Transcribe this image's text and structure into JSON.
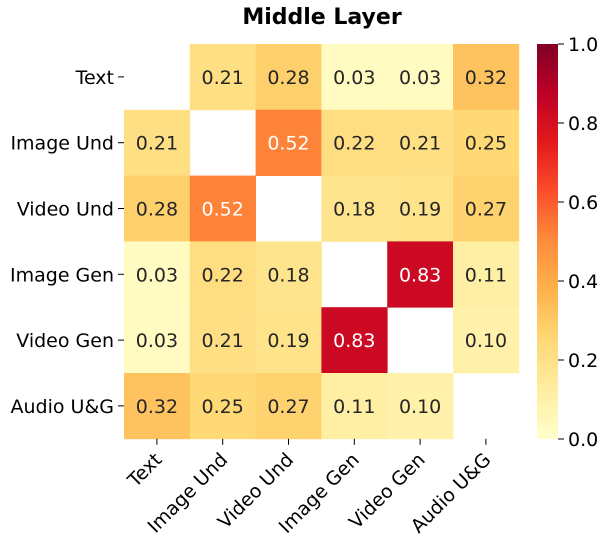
{
  "chart_data": {
    "type": "heatmap",
    "title": "Middle Layer",
    "rows": [
      "Text",
      "Image Und",
      "Video Und",
      "Image Gen",
      "Video Gen",
      "Audio U&G"
    ],
    "columns": [
      "Text",
      "Image Und",
      "Video Und",
      "Image Gen",
      "Video Gen",
      "Audio U&G"
    ],
    "values": [
      [
        null,
        0.21,
        0.28,
        0.03,
        0.03,
        0.32
      ],
      [
        0.21,
        null,
        0.52,
        0.22,
        0.21,
        0.25
      ],
      [
        0.28,
        0.52,
        null,
        0.18,
        0.19,
        0.27
      ],
      [
        0.03,
        0.22,
        0.18,
        null,
        0.83,
        0.11
      ],
      [
        0.03,
        0.21,
        0.19,
        0.83,
        null,
        0.1
      ],
      [
        0.32,
        0.25,
        0.27,
        0.11,
        0.1,
        null
      ]
    ],
    "value_labels": [
      [
        "",
        "0.21",
        "0.28",
        "0.03",
        "0.03",
        "0.32"
      ],
      [
        "0.21",
        "",
        "0.52",
        "0.22",
        "0.21",
        "0.25"
      ],
      [
        "0.28",
        "0.52",
        "",
        "0.18",
        "0.19",
        "0.27"
      ],
      [
        "0.03",
        "0.22",
        "0.18",
        "",
        "0.83",
        "0.11"
      ],
      [
        "0.03",
        "0.21",
        "0.19",
        "0.83",
        "",
        "0.10"
      ],
      [
        "0.32",
        "0.25",
        "0.27",
        "0.11",
        "0.10",
        ""
      ]
    ],
    "colorbar": {
      "min": 0.0,
      "max": 1.0,
      "ticks": [
        0.0,
        0.2,
        0.4,
        0.6,
        0.8,
        1.0
      ],
      "tick_labels": [
        "0.0",
        "0.2",
        "0.4",
        "0.6",
        "0.8",
        "1.0"
      ],
      "colormap": "YlOrRd"
    },
    "colormap_stops": [
      "#ffffcc",
      "#ffeda0",
      "#fed976",
      "#feb24c",
      "#fd8d3c",
      "#fc4e2a",
      "#e31a1c",
      "#bd0026",
      "#800026"
    ],
    "light_text_color": "#ffffff",
    "dark_text_color": "#262626"
  }
}
